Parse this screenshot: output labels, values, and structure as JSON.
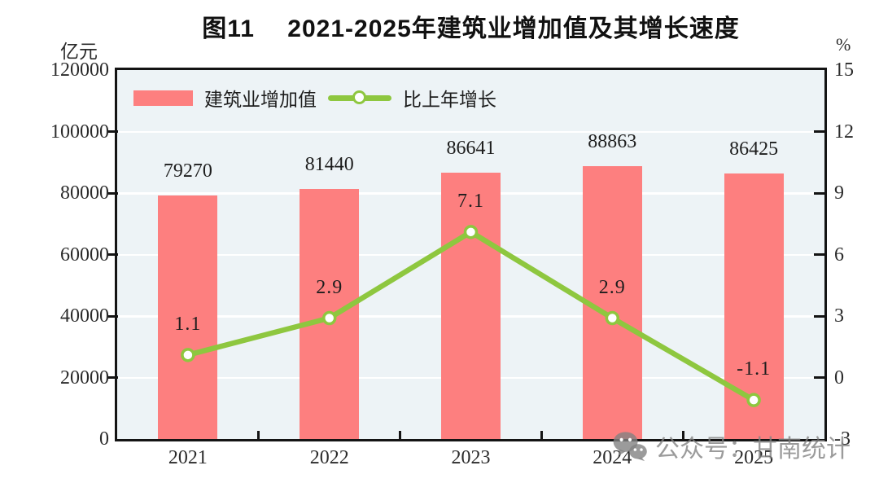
{
  "chart_data": {
    "type": "bar",
    "title": "图11　 2021-2025年建筑业增加值及其增长速度",
    "categories": [
      "2021",
      "2022",
      "2023",
      "2024",
      "2025"
    ],
    "series": [
      {
        "name": "建筑业增加值",
        "type": "bar",
        "axis": "left",
        "color": "#fd7f7f",
        "values": [
          79270,
          81440,
          86641,
          88863,
          86425
        ],
        "labels": [
          "79270",
          "81440",
          "86641",
          "88863",
          "86425"
        ]
      },
      {
        "name": "比上年增长",
        "type": "line",
        "axis": "right",
        "color": "#8ec73f",
        "marker": "circle-white",
        "values": [
          1.1,
          2.9,
          7.1,
          2.9,
          -1.1
        ],
        "labels": [
          "1.1",
          "2.9",
          "7.1",
          "2.9",
          "-1.1"
        ]
      }
    ],
    "left_axis": {
      "label": "亿元",
      "min": 0,
      "max": 120000,
      "step": 20000,
      "tick_labels": [
        "120000",
        "100000",
        "80000",
        "60000",
        "40000",
        "20000",
        "0"
      ]
    },
    "right_axis": {
      "label": "%",
      "min": -3,
      "max": 15,
      "step": 3,
      "tick_labels": [
        "15",
        "12",
        "9",
        "6",
        "3",
        "0",
        "-3"
      ]
    },
    "grid": true,
    "legend_position": "top-left",
    "plot_bg": "#edf3f6",
    "gridline_color": "#ffffff",
    "border_color": "#141414"
  },
  "watermark": {
    "icon": "wechat-icon",
    "text": "公众号：甘南统计",
    "color": "#9a9a9a"
  }
}
